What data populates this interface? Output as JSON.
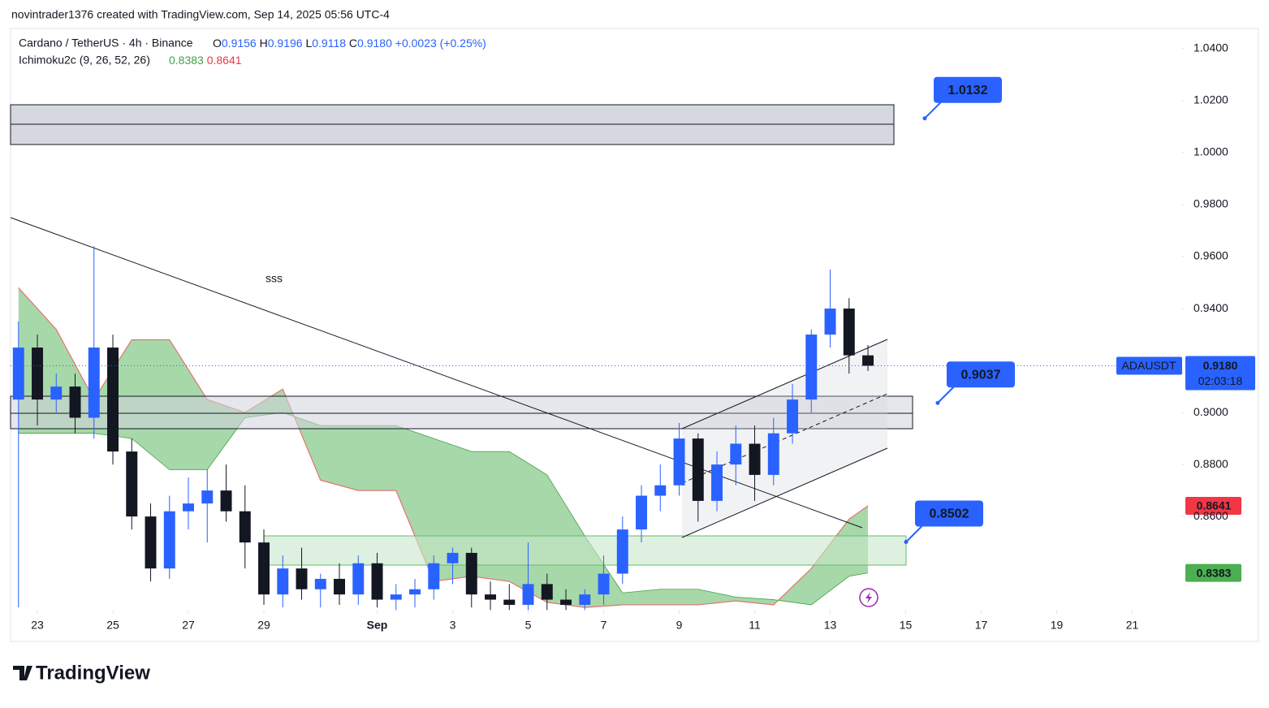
{
  "header": {
    "credit": "novintrader1376 created with TradingView.com, Sep 14, 2025 05:56 UTC-4",
    "symbol": "Cardano / TetherUS · 4h · Binance",
    "ohlc": [
      {
        "key": "O",
        "value": "0.9156"
      },
      {
        "key": "H",
        "value": "0.9196"
      },
      {
        "key": "L",
        "value": "0.9118"
      },
      {
        "key": "C",
        "value": "0.9180"
      }
    ],
    "change": "+0.0023 (+0.25%)",
    "indicator": "Ichimoku2c (9, 26, 52, 26)"
  },
  "chart_data": {
    "type": "candlestick",
    "annotation": "sss",
    "xlim": [
      -0.71,
      30.3
    ],
    "xticks": [
      {
        "value": 0,
        "label": "23"
      },
      {
        "value": 2,
        "label": "25"
      },
      {
        "value": 4,
        "label": "27"
      },
      {
        "value": 6,
        "label": "29"
      },
      {
        "value": 9,
        "label": "Sep"
      },
      {
        "value": 11,
        "label": "3"
      },
      {
        "value": 13,
        "label": "5"
      },
      {
        "value": 15,
        "label": "7"
      },
      {
        "value": 17,
        "label": "9"
      },
      {
        "value": 19,
        "label": "11"
      },
      {
        "value": 21,
        "label": "13"
      },
      {
        "value": 23,
        "label": "15"
      },
      {
        "value": 25,
        "label": "17"
      },
      {
        "value": 27,
        "label": "19"
      },
      {
        "value": 29,
        "label": "21"
      }
    ],
    "ylim": [
      0.8238,
      1.0478
    ],
    "yticks": [
      {
        "value": 1.04,
        "label": "1.0400"
      },
      {
        "value": 1.02,
        "label": "1.0200"
      },
      {
        "value": 1.0,
        "label": "1.0000"
      },
      {
        "value": 0.98,
        "label": "0.9800"
      },
      {
        "value": 0.96,
        "label": "0.9600"
      },
      {
        "value": 0.94,
        "label": "0.9400"
      },
      {
        "value": 0.9,
        "label": "0.9000"
      },
      {
        "value": 0.88,
        "label": "0.8800"
      },
      {
        "value": 0.86,
        "label": "0.8600"
      }
    ],
    "up_color": "#2962ff",
    "down_color": "#131722",
    "x": [
      -0.5,
      0,
      0.5,
      1,
      1.5,
      2,
      2.5,
      3,
      3.5,
      4,
      4.5,
      5,
      5.5,
      6,
      6.5,
      7,
      7.5,
      8,
      8.5,
      9,
      9.5,
      10,
      10.5,
      11,
      11.5,
      12,
      12.5,
      13,
      13.5,
      14,
      14.5,
      15,
      15.5,
      16,
      16.5,
      17,
      17.5,
      18,
      18.5,
      19,
      19.5,
      20,
      20.5,
      21,
      21.5,
      22
    ],
    "open": [
      0.905,
      0.925,
      0.905,
      0.91,
      0.898,
      0.925,
      0.885,
      0.86,
      0.84,
      0.862,
      0.865,
      0.87,
      0.862,
      0.85,
      0.83,
      0.84,
      0.832,
      0.836,
      0.83,
      0.842,
      0.828,
      0.83,
      0.832,
      0.842,
      0.846,
      0.83,
      0.828,
      0.826,
      0.834,
      0.828,
      0.826,
      0.83,
      0.838,
      0.855,
      0.868,
      0.872,
      0.89,
      0.866,
      0.88,
      0.888,
      0.876,
      0.892,
      0.905,
      0.93,
      0.94,
      0.922
    ],
    "high": [
      0.935,
      0.93,
      0.915,
      0.915,
      0.964,
      0.93,
      0.89,
      0.865,
      0.868,
      0.875,
      0.878,
      0.88,
      0.872,
      0.855,
      0.845,
      0.848,
      0.838,
      0.842,
      0.845,
      0.846,
      0.834,
      0.836,
      0.845,
      0.848,
      0.848,
      0.835,
      0.834,
      0.85,
      0.838,
      0.832,
      0.832,
      0.845,
      0.86,
      0.872,
      0.88,
      0.896,
      0.892,
      0.885,
      0.895,
      0.895,
      0.898,
      0.911,
      0.932,
      0.955,
      0.944,
      0.926
    ],
    "low": [
      0.825,
      0.895,
      0.9,
      0.892,
      0.89,
      0.88,
      0.855,
      0.835,
      0.836,
      0.855,
      0.85,
      0.858,
      0.84,
      0.826,
      0.825,
      0.828,
      0.825,
      0.826,
      0.826,
      0.825,
      0.824,
      0.825,
      0.828,
      0.834,
      0.825,
      0.824,
      0.824,
      0.824,
      0.824,
      0.824,
      0.824,
      0.826,
      0.834,
      0.85,
      0.862,
      0.868,
      0.858,
      0.862,
      0.872,
      0.866,
      0.872,
      0.888,
      0.9,
      0.925,
      0.915,
      0.916
    ],
    "close": [
      0.925,
      0.905,
      0.91,
      0.898,
      0.925,
      0.885,
      0.86,
      0.84,
      0.862,
      0.865,
      0.87,
      0.862,
      0.85,
      0.83,
      0.84,
      0.832,
      0.836,
      0.83,
      0.842,
      0.828,
      0.83,
      0.832,
      0.842,
      0.846,
      0.83,
      0.828,
      0.826,
      0.834,
      0.828,
      0.826,
      0.83,
      0.838,
      0.855,
      0.868,
      0.872,
      0.89,
      0.866,
      0.88,
      0.888,
      0.876,
      0.892,
      0.905,
      0.93,
      0.94,
      0.922,
      0.918
    ],
    "cloud": {
      "fill": "#81c784",
      "x": [
        -0.5,
        0.5,
        1.5,
        2.5,
        3.5,
        4.5,
        5.5,
        6.5,
        7.5,
        8.5,
        9.5,
        10.5,
        11.5,
        12.5,
        13.5,
        14.5,
        15.5,
        16.5,
        17.5,
        18.5,
        19.5,
        20.5,
        21.5,
        22
      ],
      "span_a": {
        "color": "#43a047",
        "values": [
          0.892,
          0.892,
          0.892,
          0.89,
          0.878,
          0.878,
          0.898,
          0.9,
          0.895,
          0.895,
          0.895,
          0.89,
          0.885,
          0.885,
          0.876,
          0.8525,
          0.8306,
          0.832,
          0.832,
          0.829,
          0.828,
          0.826,
          0.837,
          0.8383
        ]
      },
      "span_b": {
        "color": "#e57373",
        "values": [
          0.948,
          0.932,
          0.905,
          0.928,
          0.928,
          0.905,
          0.9,
          0.909,
          0.874,
          0.87,
          0.87,
          0.835,
          0.837,
          0.835,
          0.827,
          0.825,
          0.826,
          0.826,
          0.826,
          0.8275,
          0.826,
          0.84,
          0.859,
          0.8641
        ]
      }
    },
    "last_price": {
      "value": 0.918,
      "label": "0.9180",
      "symbol": "ADAUSDT",
      "countdown": "02:03:18"
    },
    "callouts": [
      1.0132,
      0.9037,
      0.8502
    ]
  }
}
